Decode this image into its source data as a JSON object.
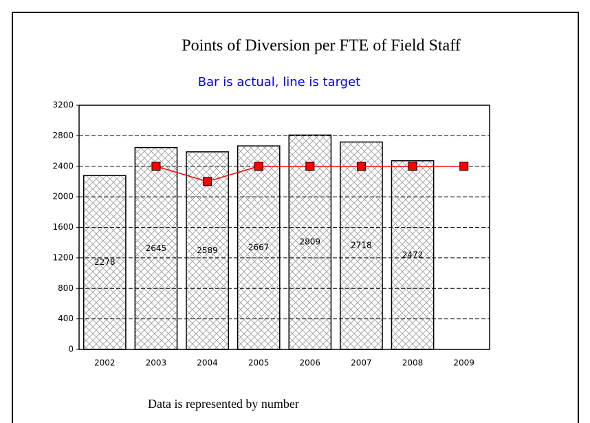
{
  "chart_data": {
    "type": "bar_line",
    "title": "Points of Diversion per FTE of Field Staff",
    "subtitle": "Bar is actual, line is target",
    "footer": "Data is represented by number",
    "categories": [
      "2002",
      "2003",
      "2004",
      "2005",
      "2006",
      "2007",
      "2008",
      "2009"
    ],
    "series": [
      {
        "type": "bar",
        "color": "#d8d8d8",
        "values": [
          2278,
          2645,
          2589,
          2667,
          2809,
          2718,
          2472,
          null
        ]
      },
      {
        "type": "line",
        "color": "#ff0000",
        "values": [
          null,
          2400,
          2200,
          2400,
          2400,
          2400,
          2400,
          2400
        ]
      }
    ],
    "ylim": [
      0,
      3200
    ],
    "yticks": [
      0,
      400,
      800,
      1200,
      1600,
      2000,
      2400,
      2800,
      3200
    ],
    "grid": true
  }
}
